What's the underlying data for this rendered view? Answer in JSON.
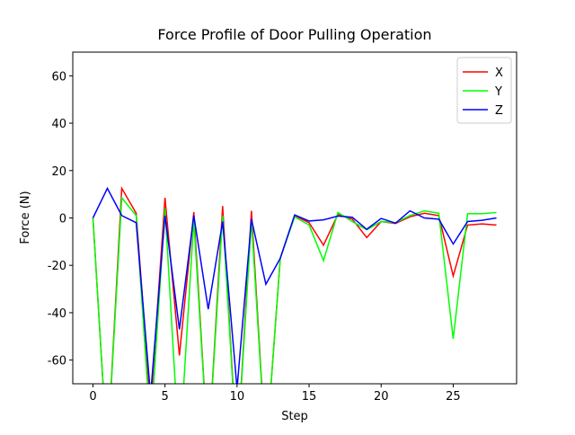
{
  "chart_data": {
    "type": "line",
    "title": "Force Profile of Door Pulling Operation",
    "xlabel": "Step",
    "ylabel": "Force (N)",
    "x": [
      0,
      1,
      2,
      3,
      4,
      5,
      6,
      7,
      8,
      9,
      10,
      11,
      12,
      13,
      14,
      15,
      16,
      17,
      18,
      19,
      20,
      21,
      22,
      23,
      24,
      25,
      26,
      27,
      28
    ],
    "series": [
      {
        "name": "X",
        "color": "#ff0000",
        "values": [
          0,
          -100,
          12.5,
          2,
          -80,
          8.5,
          -58,
          2.5,
          -100,
          5,
          -100,
          3,
          -100,
          -17,
          1,
          -2,
          -11.5,
          1.5,
          -0.5,
          -8.3,
          -1.5,
          -2.3,
          0.5,
          2,
          1,
          -24.5,
          -3,
          -2.5,
          -3
        ]
      },
      {
        "name": "Y",
        "color": "#00ff00",
        "values": [
          0,
          -100,
          8.5,
          1,
          -90,
          4,
          -100,
          -1,
          -100,
          1,
          -100,
          -1,
          -100,
          -17,
          0.5,
          -3,
          -18,
          2.3,
          -1.5,
          -5,
          -1.5,
          -2,
          1,
          3,
          2,
          -51,
          1.8,
          1.8,
          2.3
        ]
      },
      {
        "name": "Z",
        "color": "#0000ff",
        "values": [
          0,
          12.5,
          1,
          -2,
          -75,
          1,
          -47,
          1,
          -38.5,
          -1.5,
          -72,
          -0.5,
          -28,
          -17,
          1.3,
          -1.3,
          -0.8,
          0.8,
          0.3,
          -4.8,
          -0.2,
          -2.2,
          3,
          0,
          -0.5,
          -11,
          -1.5,
          -1,
          0
        ]
      }
    ],
    "xlim": [
      -1.4,
      29.4
    ],
    "xticks": [
      0,
      5,
      10,
      15,
      20,
      25
    ],
    "ylim": [
      -70,
      70
    ],
    "yticks": [
      -60,
      -40,
      -20,
      0,
      20,
      40,
      60
    ],
    "legend": "upper right"
  }
}
